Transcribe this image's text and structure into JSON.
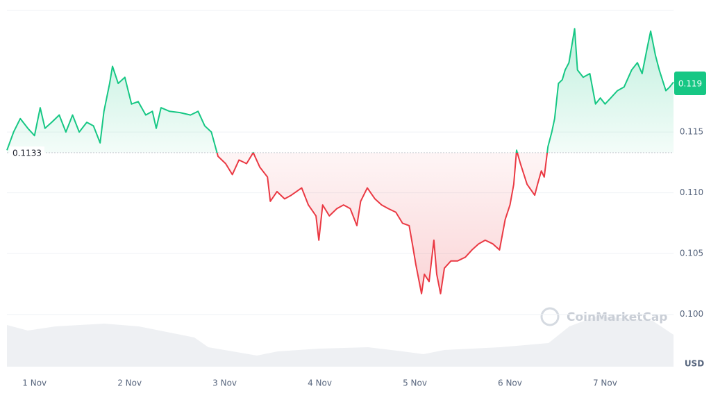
{
  "chart_data": {
    "type": "line",
    "watermark": "CoinMarketCap",
    "y_label": "USD",
    "baseline": 0.1133,
    "current_price": 0.119,
    "up_color": "#16c784",
    "down_color": "#ea3943",
    "grid": true,
    "xlim": [
      -0.29,
      6.72
    ],
    "xticks": [
      {
        "value": 0,
        "label": "1 Nov"
      },
      {
        "value": 1,
        "label": "2 Nov"
      },
      {
        "value": 2,
        "label": "3 Nov"
      },
      {
        "value": 3,
        "label": "4 Nov"
      },
      {
        "value": 4,
        "label": "5 Nov"
      },
      {
        "value": 5,
        "label": "6 Nov"
      },
      {
        "value": 6,
        "label": "7 Nov"
      }
    ],
    "ylim": [
      0.0957,
      0.125
    ],
    "yticks": [
      {
        "value": 0.1,
        "label": "0.100"
      },
      0.105,
      {
        "value": 0.11,
        "label": "0.110"
      },
      0.115
    ],
    "x": [
      -0.29,
      -0.22,
      -0.15,
      -0.07,
      0,
      0.06,
      0.11,
      0.18,
      0.26,
      0.33,
      0.4,
      0.47,
      0.55,
      0.62,
      0.69,
      0.73,
      0.79,
      0.82,
      0.88,
      0.95,
      1.02,
      1.09,
      1.17,
      1.24,
      1.28,
      1.33,
      1.42,
      1.53,
      1.64,
      1.72,
      1.79,
      1.86,
      1.93,
      2.01,
      2.08,
      2.15,
      2.23,
      2.3,
      2.37,
      2.45,
      2.48,
      2.55,
      2.63,
      2.7,
      2.81,
      2.88,
      2.96,
      2.99,
      3.03,
      3.1,
      3.18,
      3.25,
      3.32,
      3.39,
      3.43,
      3.5,
      3.58,
      3.65,
      3.72,
      3.8,
      3.87,
      3.94,
      3.98,
      4.01,
      4.07,
      4.1,
      4.15,
      4.2,
      4.23,
      4.27,
      4.31,
      4.38,
      4.45,
      4.53,
      4.6,
      4.67,
      4.74,
      4.82,
      4.89,
      4.95,
      5,
      5.04,
      5.07,
      5.11,
      5.18,
      5.26,
      5.29,
      5.33,
      5.36,
      5.4,
      5.44,
      5.47,
      5.51,
      5.55,
      5.58,
      5.62,
      5.68,
      5.71,
      5.77,
      5.84,
      5.9,
      5.95,
      6,
      6.06,
      6.13,
      6.2,
      6.28,
      6.34,
      6.39,
      6.44,
      6.48,
      6.53,
      6.57,
      6.64,
      6.68,
      6.72
    ],
    "values": [
      0.1135,
      0.115,
      0.1161,
      0.1153,
      0.1147,
      0.117,
      0.1153,
      0.1158,
      0.1164,
      0.115,
      0.1164,
      0.115,
      0.1158,
      0.1155,
      0.1141,
      0.1167,
      0.119,
      0.1204,
      0.119,
      0.1195,
      0.1173,
      0.1175,
      0.1164,
      0.1167,
      0.1153,
      0.117,
      0.1167,
      0.1166,
      0.1164,
      0.1167,
      0.1155,
      0.115,
      0.113,
      0.1124,
      0.1115,
      0.1127,
      0.1124,
      0.1133,
      0.1121,
      0.1113,
      0.1093,
      0.1101,
      0.1095,
      0.1098,
      0.1104,
      0.109,
      0.1081,
      0.1061,
      0.109,
      0.1081,
      0.1087,
      0.109,
      0.1087,
      0.1073,
      0.1093,
      0.1104,
      0.1095,
      0.109,
      0.1087,
      0.1084,
      0.1075,
      0.1073,
      0.1055,
      0.1041,
      0.1017,
      0.1033,
      0.1027,
      0.1061,
      0.1033,
      0.1017,
      0.1038,
      0.1044,
      0.1044,
      0.1047,
      0.1053,
      0.1058,
      0.1061,
      0.1058,
      0.1053,
      0.1078,
      0.109,
      0.1107,
      0.1135,
      0.1124,
      0.1107,
      0.1098,
      0.1107,
      0.1118,
      0.1113,
      0.1138,
      0.115,
      0.1161,
      0.119,
      0.1193,
      0.1201,
      0.1207,
      0.1235,
      0.1201,
      0.1195,
      0.1198,
      0.1173,
      0.1178,
      0.1173,
      0.1178,
      0.1184,
      0.1187,
      0.1201,
      0.1207,
      0.1198,
      0.1218,
      0.1233,
      0.1213,
      0.1201,
      0.1184,
      0.1187,
      0.1191
    ]
  }
}
